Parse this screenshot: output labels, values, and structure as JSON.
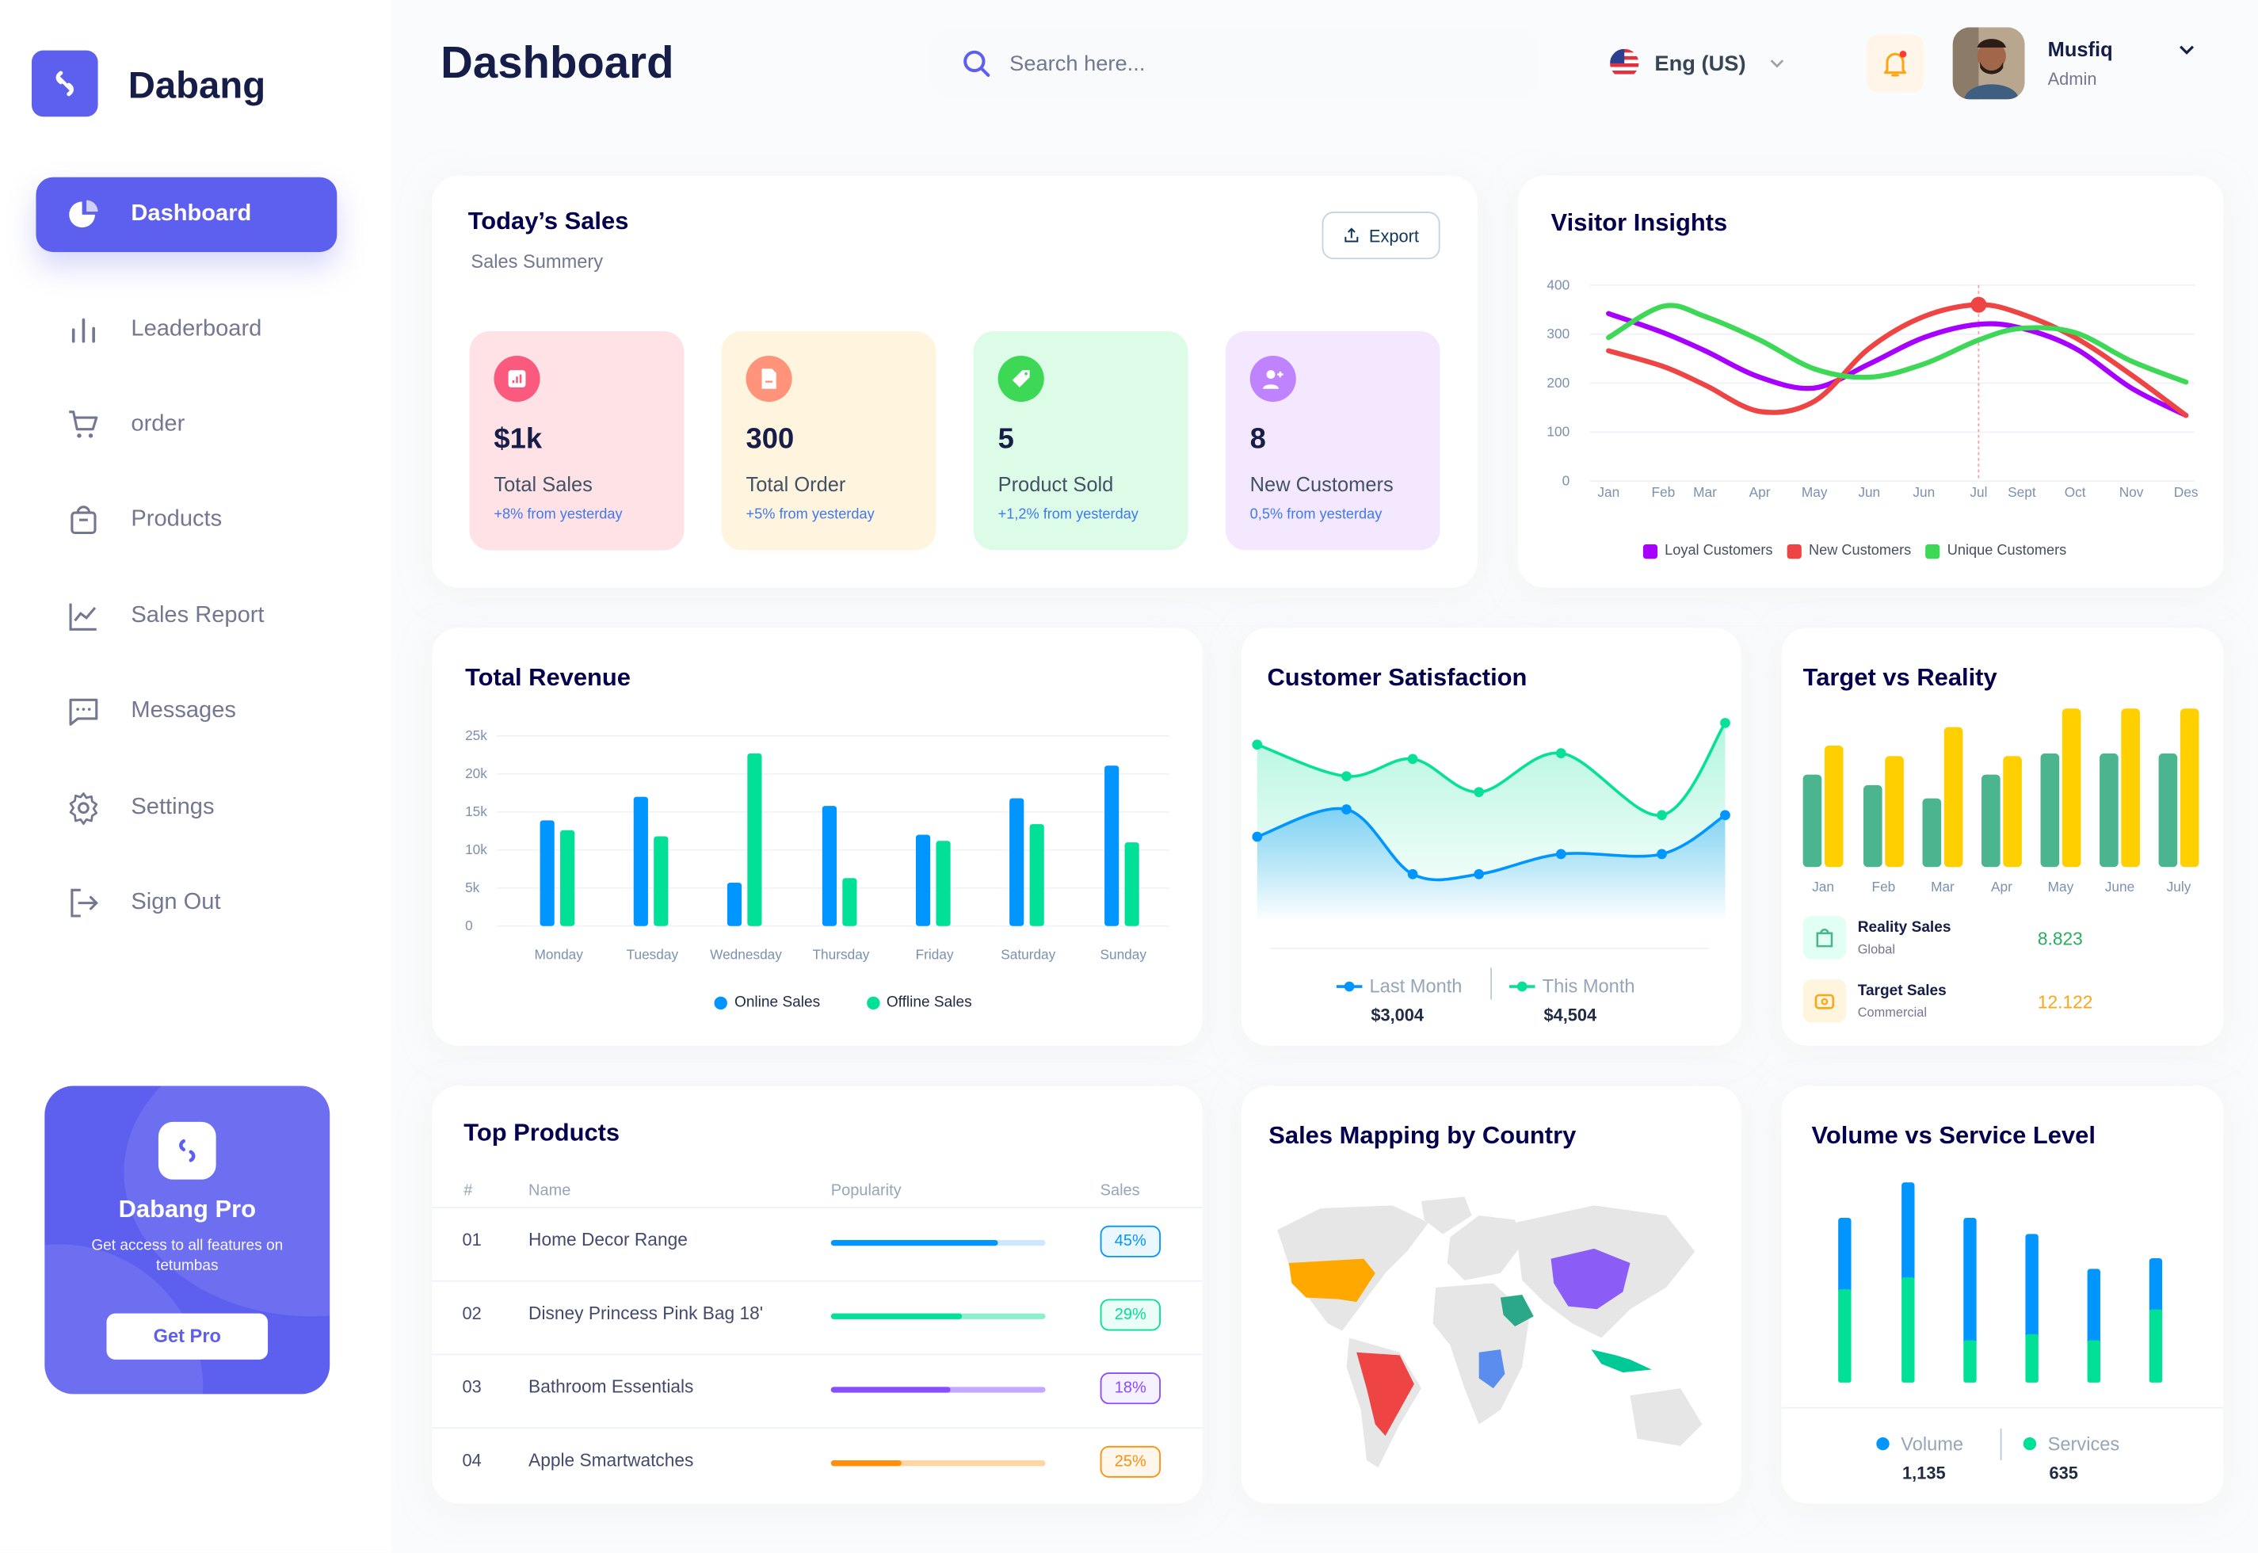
{
  "app": {
    "brand": "Dabang",
    "accent": "#5d5fef"
  },
  "sidebar": {
    "items": [
      {
        "label": "Dashboard",
        "icon": "pie-chart-icon",
        "active": true
      },
      {
        "label": "Leaderboard",
        "icon": "bar-chart-icon"
      },
      {
        "label": "order",
        "icon": "cart-icon"
      },
      {
        "label": "Products",
        "icon": "shopping-bag-icon"
      },
      {
        "label": "Sales Report",
        "icon": "line-chart-icon"
      },
      {
        "label": "Messages",
        "icon": "message-icon"
      },
      {
        "label": "Settings",
        "icon": "gear-icon"
      },
      {
        "label": "Sign Out",
        "icon": "sign-out-icon"
      }
    ],
    "pro": {
      "title": "Dabang Pro",
      "text": "Get access to all features on tetumbas",
      "button": "Get Pro"
    }
  },
  "header": {
    "title": "Dashboard",
    "search_placeholder": "Search here...",
    "language": "Eng (US)",
    "user_name": "Musfiq",
    "user_role": "Admin",
    "notification_dot": true
  },
  "todays_sales": {
    "title": "Today’s Sales",
    "subtitle": "Sales Summery",
    "export_label": "Export",
    "stats": [
      {
        "value": "$1k",
        "label": "Total Sales",
        "change": "+8% from yesterday",
        "bg": "#ffe2e5",
        "icon_bg": "#fa5a7d",
        "icon": "bar-chart-icon"
      },
      {
        "value": "300",
        "label": "Total Order",
        "change": "+5% from yesterday",
        "bg": "#fff4de",
        "icon_bg": "#ff947a",
        "icon": "document-icon"
      },
      {
        "value": "5",
        "label": "Product Sold",
        "change": "+1,2% from yesterday",
        "bg": "#dcfce7",
        "icon_bg": "#3cd856",
        "icon": "tag-icon"
      },
      {
        "value": "8",
        "label": "New Customers",
        "change": "0,5% from yesterday",
        "bg": "#f3e8ff",
        "icon_bg": "#bf83ff",
        "icon": "add-user-icon"
      }
    ]
  },
  "chart_data": [
    {
      "id": "visitor",
      "type": "line",
      "title": "Visitor Insights",
      "categories": [
        "Jan",
        "Feb",
        "Mar",
        "Apr",
        "May",
        "Jun",
        "Jun",
        "Jul",
        "Sept",
        "Oct",
        "Nov",
        "Des"
      ],
      "yticks": [
        "0",
        "100",
        "200",
        "300",
        "400"
      ],
      "ylim": [
        0,
        400
      ],
      "grid": true,
      "legend": "bottom",
      "highlight": {
        "series": "New Customers",
        "category": "Jul"
      },
      "series": [
        {
          "name": "Loyal Customers",
          "color": "#a700ff",
          "values": [
            342,
            303,
            266,
            212,
            190,
            239,
            293,
            320,
            312,
            271,
            190,
            134
          ]
        },
        {
          "name": "New Customers",
          "color": "#ef4444",
          "values": [
            266,
            234,
            196,
            142,
            163,
            271,
            336,
            360,
            341,
            293,
            217,
            134
          ]
        },
        {
          "name": "Unique Customers",
          "color": "#3cd856",
          "values": [
            293,
            357,
            336,
            288,
            229,
            212,
            239,
            288,
            312,
            303,
            245,
            202
          ]
        }
      ]
    },
    {
      "id": "revenue",
      "type": "bar",
      "title": "Total Revenue",
      "categories": [
        "Monday",
        "Tuesday",
        "Wednesday",
        "Thursday",
        "Friday",
        "Saturday",
        "Sunday"
      ],
      "yticks": [
        "0",
        "5k",
        "10k",
        "15k",
        "20k",
        "25k"
      ],
      "ylim": [
        0,
        25000
      ],
      "grid": true,
      "legend": "bottom",
      "series": [
        {
          "name": "Online Sales",
          "color": "#0095ff",
          "values": [
            13900,
            17000,
            5700,
            15800,
            12000,
            16800,
            21100
          ]
        },
        {
          "name": "Offline Sales",
          "color": "#00e096",
          "values": [
            12600,
            11800,
            22700,
            6300,
            11200,
            13400,
            11000
          ]
        }
      ]
    },
    {
      "id": "satisfaction",
      "type": "area",
      "title": "Customer Satisfaction",
      "legend": "bottom",
      "series": [
        {
          "name": "Last Month",
          "color": "#0095ff",
          "total": "$3,004",
          "values": [
            2.95,
            3.9,
            1.65,
            1.65,
            2.35,
            2.35,
            3.7
          ]
        },
        {
          "name": "This Month",
          "color": "#07e098",
          "total": "$4,504",
          "values": [
            6.15,
            5.05,
            5.65,
            4.5,
            5.85,
            3.7,
            6.9
          ]
        }
      ]
    },
    {
      "id": "target",
      "type": "bar",
      "title": "Target vs Reality",
      "categories": [
        "Jan",
        "Feb",
        "Mar",
        "Apr",
        "May",
        "June",
        "July"
      ],
      "series": [
        {
          "name": "Reality Sales",
          "sub": "Global",
          "total": "8.823",
          "color": "#4ab58e",
          "values": [
            3.5,
            3.1,
            2.6,
            3.5,
            4.3,
            4.3,
            4.3
          ]
        },
        {
          "name": "Target Sales",
          "sub": "Commercial",
          "total": "12.122",
          "color": "#ffcf00",
          "values": [
            4.6,
            4.2,
            5.3,
            4.2,
            6.0,
            6.0,
            6.0
          ]
        }
      ]
    },
    {
      "id": "volume",
      "type": "stacked-bar",
      "title": "Volume vs Service Level",
      "legend": "bottom",
      "series": [
        {
          "name": "Volume",
          "color": "#0095ff",
          "total": "1,135",
          "values": [
            270,
            359,
            463,
            379,
            270,
            193
          ]
        },
        {
          "name": "Services",
          "color": "#00e096",
          "total": "635",
          "values": [
            353,
            398,
            160,
            183,
            160,
            277
          ]
        }
      ]
    }
  ],
  "top_products": {
    "title": "Top Products",
    "columns": [
      "#",
      "Name",
      "Popularity",
      "Sales"
    ],
    "rows": [
      {
        "num": "01",
        "name": "Home Decor Range",
        "popularity": 0.78,
        "sales": "45%",
        "color": "#0095ff",
        "light": "#cde7ff"
      },
      {
        "num": "02",
        "name": "Disney Princess Pink Bag 18'",
        "popularity": 0.61,
        "sales": "29%",
        "color": "#00e096",
        "light": "#8cf1cb"
      },
      {
        "num": "03",
        "name": "Bathroom Essentials",
        "popularity": 0.56,
        "sales": "18%",
        "color": "#884dff",
        "light": "#c5a8ff"
      },
      {
        "num": "04",
        "name": "Apple Smartwatches",
        "popularity": 0.33,
        "sales": "25%",
        "color": "#ff8f0d",
        "light": "#ffd5a4"
      }
    ]
  },
  "sales_mapping": {
    "title": "Sales Mapping by Country",
    "countries": [
      {
        "name": "USA",
        "color": "#ffa800"
      },
      {
        "name": "Brazil",
        "color": "#ef4444"
      },
      {
        "name": "China",
        "color": "#8b5cf6"
      },
      {
        "name": "Saudi Arabia",
        "color": "#2aa889"
      },
      {
        "name": "DR Congo",
        "color": "#5b8def"
      },
      {
        "name": "Indonesia",
        "color": "#00c896"
      }
    ]
  }
}
